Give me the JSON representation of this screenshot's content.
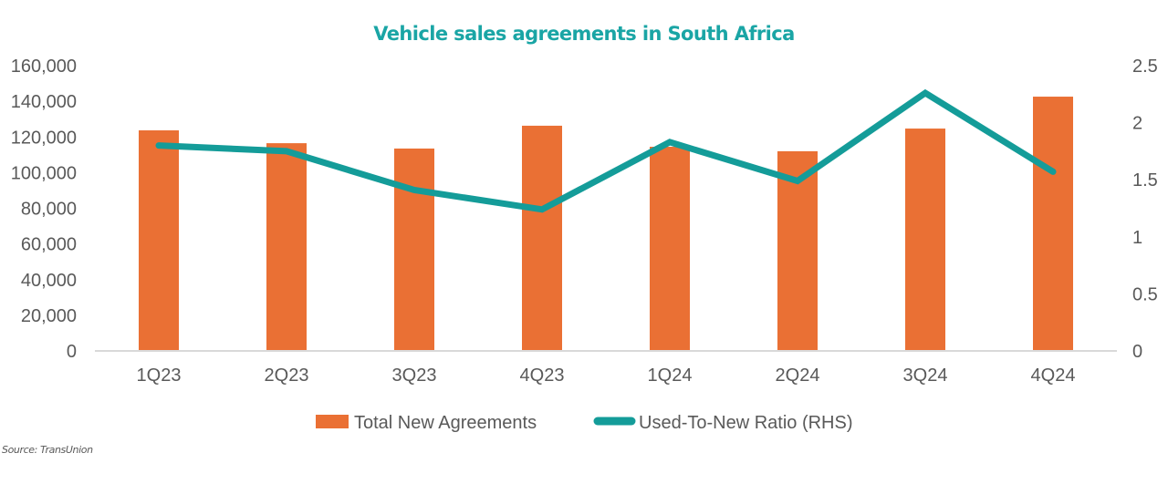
{
  "chart_data": {
    "type": "bar+line",
    "title": "Vehicle sales agreements in South Africa",
    "categories": [
      "1Q23",
      "2Q23",
      "3Q23",
      "4Q23",
      "1Q24",
      "2Q24",
      "3Q24",
      "4Q24"
    ],
    "series": [
      {
        "name": "Total New Agreements",
        "type": "bar",
        "axis": "left",
        "color": "#ea7034",
        "values": [
          123700,
          116500,
          113500,
          126300,
          114500,
          112000,
          124700,
          142600
        ]
      },
      {
        "name": "Used-To-New Ratio (RHS)",
        "type": "line",
        "axis": "right",
        "color": "#149c99",
        "values": [
          1.8,
          1.75,
          1.41,
          1.24,
          1.83,
          1.49,
          2.26,
          1.57
        ]
      }
    ],
    "left_axis": {
      "ylim": [
        0,
        160000
      ],
      "ticks": [
        0,
        20000,
        40000,
        60000,
        80000,
        100000,
        120000,
        140000,
        160000
      ],
      "tick_labels": [
        "0",
        "20,000",
        "40,000",
        "60,000",
        "80,000",
        "100,000",
        "120,000",
        "140,000",
        "160,000"
      ]
    },
    "right_axis": {
      "ylim": [
        0,
        2.5
      ],
      "ticks": [
        0,
        0.5,
        1,
        1.5,
        2,
        2.5
      ],
      "tick_labels": [
        "0",
        "0.5",
        "1",
        "1.5",
        "2",
        "2.5"
      ]
    },
    "grid": false,
    "legend": "bottom-center",
    "source": "Source: TransUnion"
  }
}
